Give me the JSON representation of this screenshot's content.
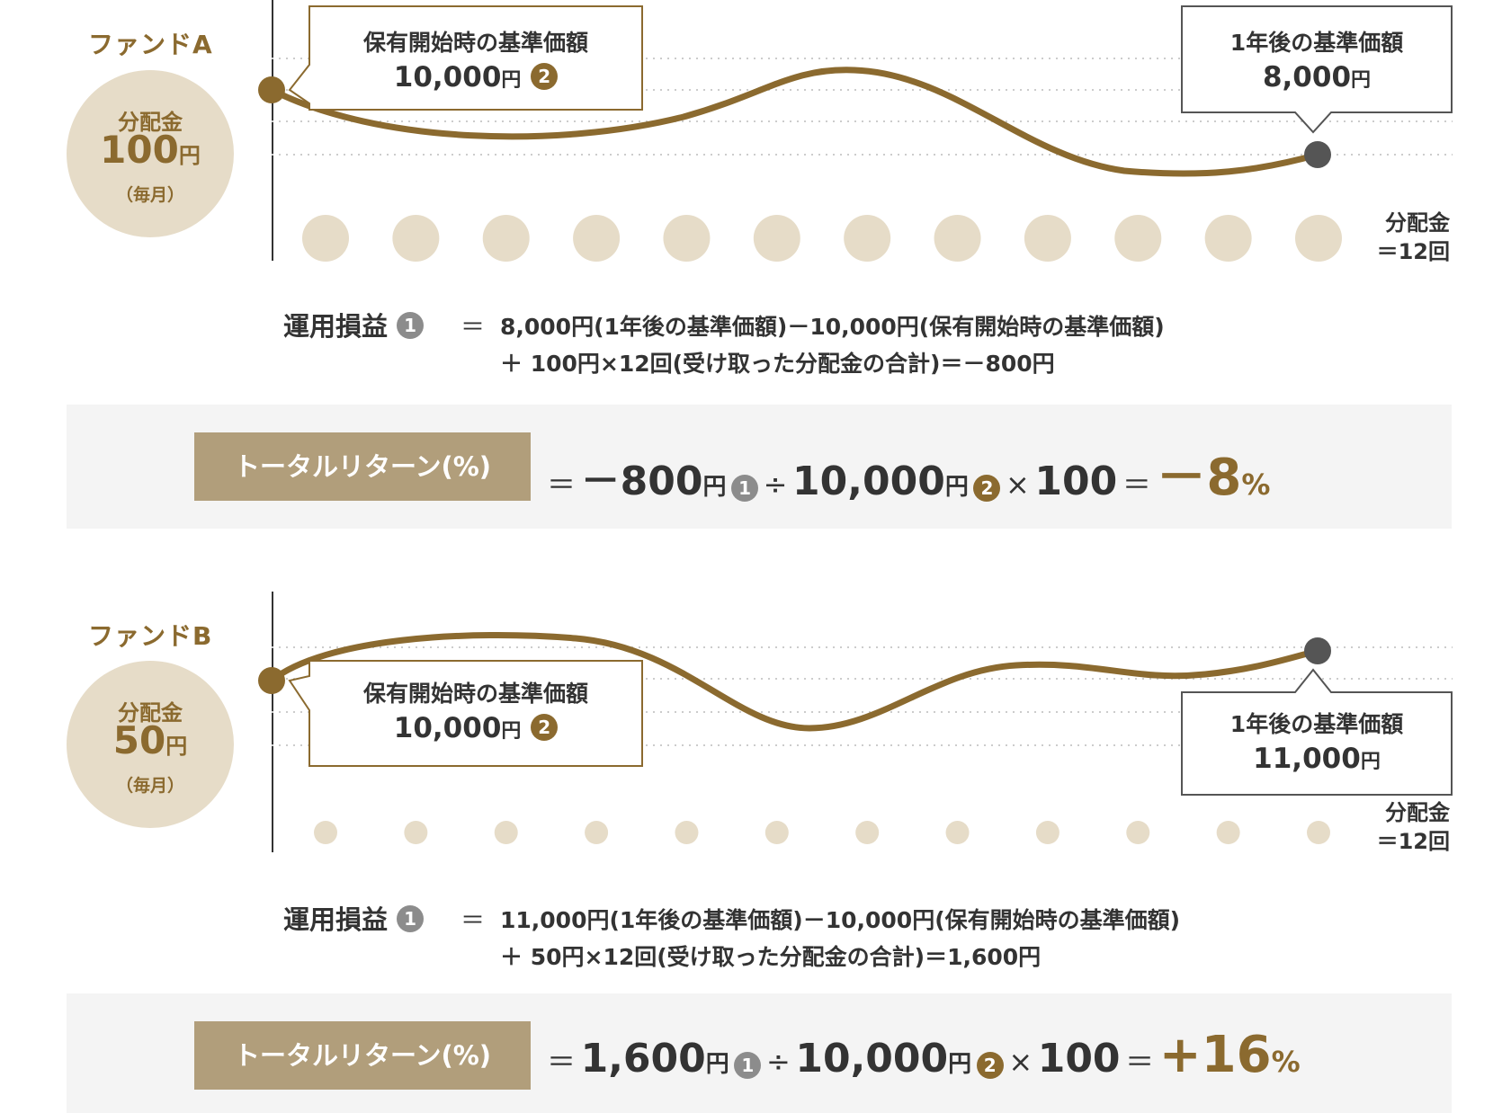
{
  "colors": {
    "brand": "#8b6a2f",
    "circle_fill": "#e6dcc8",
    "label_fill": "#b19e7b",
    "band_fill": "#f4f4f4",
    "end_dot": "#555555",
    "badge_gray": "#8c8c8c"
  },
  "fund_a": {
    "label": "ファンドA",
    "circle": {
      "title": "分配金",
      "amount": "100",
      "unit": "円",
      "freq": "（毎月）"
    },
    "start_callout": {
      "title": "保有開始時の基準価額",
      "value": "10,000",
      "unit": "円",
      "badge": "2"
    },
    "end_callout": {
      "title": "1年後の基準価額",
      "value": "8,000",
      "unit": "円"
    },
    "distribution_count": 12,
    "distribution_label_1": "分配金",
    "distribution_label_2": "＝12回",
    "pl": {
      "title": "運用損益",
      "badge": "1",
      "eq": "＝",
      "line1": "8,000円(1年後の基準価額)－10,000円(保有開始時の基準価額)",
      "line2": "＋ 100円×12回(受け取った分配金の合計)＝－800円"
    },
    "total_return": {
      "label": "トータルリターン(%)",
      "eq1": "＝",
      "pl_value": "－800",
      "pl_unit": "円",
      "badge1": "1",
      "div": "÷",
      "base_value": "10,000",
      "base_unit": "円",
      "badge2": "2",
      "mul": "×",
      "hundred": "100",
      "eq2": "＝",
      "result": "－8",
      "result_unit": "%"
    }
  },
  "fund_b": {
    "label": "ファンドB",
    "circle": {
      "title": "分配金",
      "amount": "50",
      "unit": "円",
      "freq": "（毎月）"
    },
    "start_callout": {
      "title": "保有開始時の基準価額",
      "value": "10,000",
      "unit": "円",
      "badge": "2"
    },
    "end_callout": {
      "title": "1年後の基準価額",
      "value": "11,000",
      "unit": "円"
    },
    "distribution_count": 12,
    "distribution_label_1": "分配金",
    "distribution_label_2": "＝12回",
    "pl": {
      "title": "運用損益",
      "badge": "1",
      "eq": "＝",
      "line1": "11,000円(1年後の基準価額)－10,000円(保有開始時の基準価額)",
      "line2": "＋ 50円×12回(受け取った分配金の合計)＝1,600円"
    },
    "total_return": {
      "label": "トータルリターン(%)",
      "eq1": "＝",
      "pl_value": "1,600",
      "pl_unit": "円",
      "badge1": "1",
      "div": "÷",
      "base_value": "10,000",
      "base_unit": "円",
      "badge2": "2",
      "mul": "×",
      "hundred": "100",
      "eq2": "＝",
      "result": "+16",
      "result_unit": "%"
    }
  }
}
